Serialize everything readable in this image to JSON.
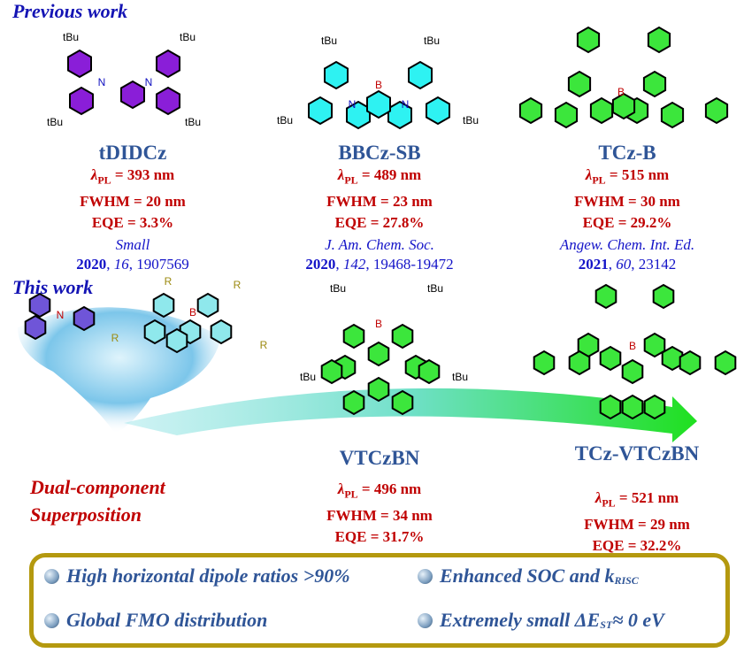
{
  "sections": {
    "previous": "Previous work",
    "this": "This work"
  },
  "atoms": {
    "tbu": "tBu",
    "n": "N",
    "b": "B",
    "r": "R"
  },
  "previous": [
    {
      "name": "tDIDCz",
      "lambda": "393 nm",
      "fwhm": "FWHM = 20 nm",
      "eqe": "EQE = 3.3%",
      "journal": "Small",
      "year": "2020",
      "volume": "16",
      "pages": "1907569",
      "color": "#8a1ed8"
    },
    {
      "name": "BBCz-SB",
      "lambda": "489 nm",
      "fwhm": "FWHM = 23 nm",
      "eqe": "EQE = 27.8%",
      "journal": "J. Am. Chem. Soc.",
      "year": "2020",
      "volume": "142",
      "pages": "19468-19472",
      "color": "#2ef2f2"
    },
    {
      "name": "TCz-B",
      "lambda": "515 nm",
      "fwhm": "FWHM = 30 nm",
      "eqe": "EQE = 29.2%",
      "journal": "Angew. Chem. Int. Ed.",
      "year": "2021",
      "volume": "60",
      "pages": " 23142",
      "color": "#3ce63c"
    }
  ],
  "this_work": [
    {
      "name": "VTCzBN",
      "lambda": "496 nm",
      "fwhm": "FWHM = 34 nm",
      "eqe": "EQE = 31.7%"
    },
    {
      "name": "TCz-VTCzBN",
      "lambda": "521 nm",
      "fwhm": "FWHM = 29 nm",
      "eqe": "EQE = 32.2%"
    }
  ],
  "lambda_symbol": "λ",
  "lambda_sub": "PL",
  "lambda_eq": " = ",
  "concept": {
    "line1": "Dual-component",
    "line2": "Superposition"
  },
  "features": {
    "f1": "High horizontal dipole ratios >90%",
    "f2_main": "Enhanced SOC and k",
    "f2_sub": "RISC",
    "f3": "Global FMO distribution",
    "f4_main": "Extremely small ΔE",
    "f4_sub": "ST",
    "f4_tail": " ≈ 0 eV"
  }
}
